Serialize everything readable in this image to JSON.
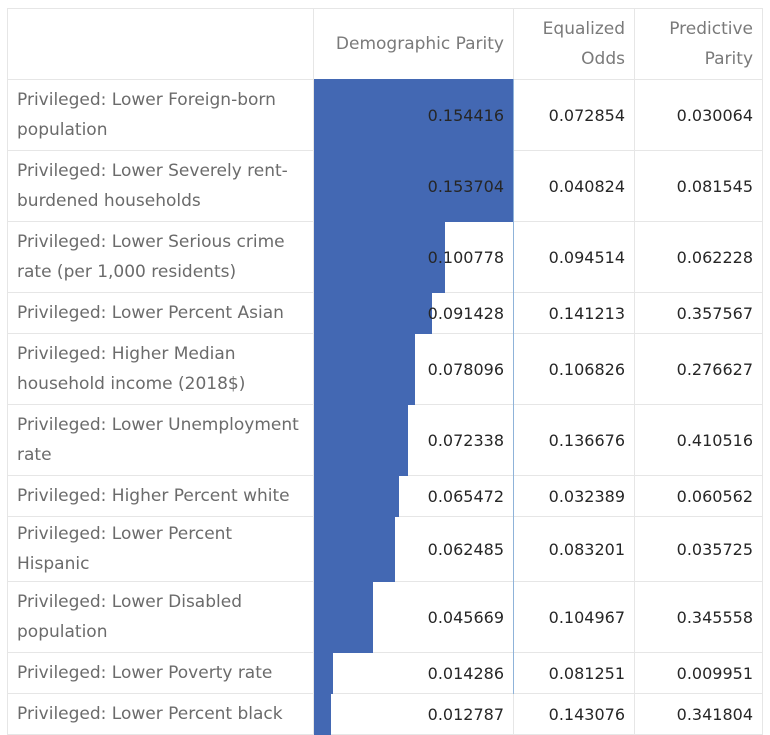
{
  "headers": {
    "label": "",
    "demographic_parity": "Demographic Parity",
    "equalized_odds": "Equalized Odds",
    "predictive_parity": "Predictive Parity"
  },
  "bar_max": 0.154416,
  "colors": {
    "bar": "#4368b3"
  },
  "rows": [
    {
      "label": "Privileged: Lower Foreign-born population",
      "dp": 0.154416,
      "dp_text": "0.154416",
      "eo": "0.072854",
      "pp": "0.030064"
    },
    {
      "label": "Privileged: Lower Severely rent-burdened households",
      "dp": 0.153704,
      "dp_text": "0.153704",
      "eo": "0.040824",
      "pp": "0.081545"
    },
    {
      "label": "Privileged: Lower Serious crime rate (per 1,000 residents)",
      "dp": 0.100778,
      "dp_text": "0.100778",
      "eo": "0.094514",
      "pp": "0.062228"
    },
    {
      "label": "Privileged: Lower Percent Asian",
      "dp": 0.091428,
      "dp_text": "0.091428",
      "eo": "0.141213",
      "pp": "0.357567"
    },
    {
      "label": "Privileged: Higher Median household income (2018$)",
      "dp": 0.078096,
      "dp_text": "0.078096",
      "eo": "0.106826",
      "pp": "0.276627"
    },
    {
      "label": "Privileged: Lower Unemployment rate",
      "dp": 0.072338,
      "dp_text": "0.072338",
      "eo": "0.136676",
      "pp": "0.410516"
    },
    {
      "label": "Privileged: Higher Percent white",
      "dp": 0.065472,
      "dp_text": "0.065472",
      "eo": "0.032389",
      "pp": "0.060562"
    },
    {
      "label": "Privileged: Lower Percent Hispanic",
      "dp": 0.062485,
      "dp_text": "0.062485",
      "eo": "0.083201",
      "pp": "0.035725"
    },
    {
      "label": "Privileged: Lower Disabled population",
      "dp": 0.045669,
      "dp_text": "0.045669",
      "eo": "0.104967",
      "pp": "0.345558"
    },
    {
      "label": "Privileged: Lower Poverty rate",
      "dp": 0.014286,
      "dp_text": "0.014286",
      "eo": "0.081251",
      "pp": "0.009951"
    },
    {
      "label": "Privileged: Lower Percent black",
      "dp": 0.012787,
      "dp_text": "0.012787",
      "eo": "0.143076",
      "pp": "0.341804"
    }
  ]
}
